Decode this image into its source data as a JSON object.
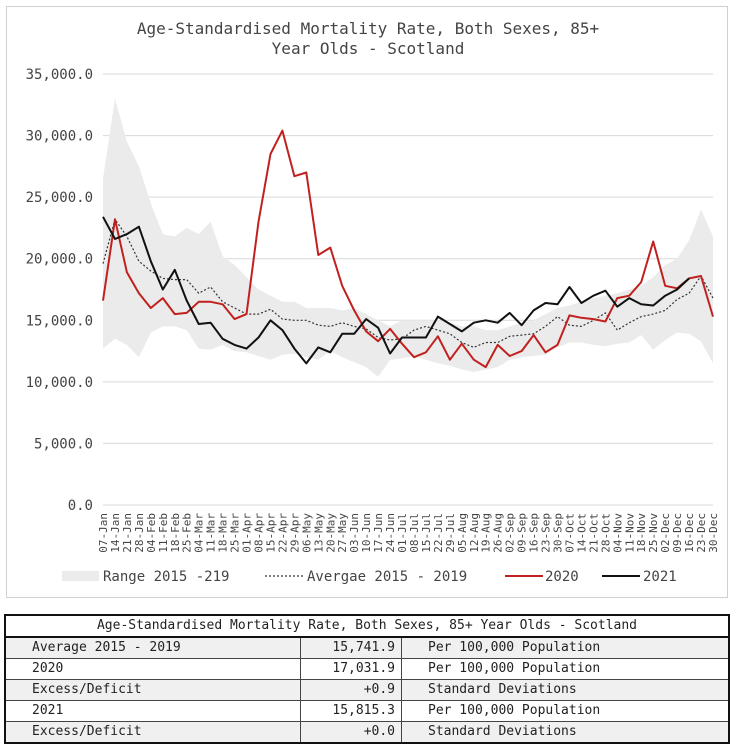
{
  "chart_data": {
    "type": "line",
    "title": "Age-Standardised Mortality Rate, Both Sexes, 85+ Year Olds - Scotland",
    "ylim": [
      0,
      35000
    ],
    "yticks": [
      "0.0",
      "5,000.0",
      "10,000.0",
      "15,000.0",
      "20,000.0",
      "25,000.0",
      "30,000.0",
      "35,000.0"
    ],
    "grid": "horizontal",
    "legend": "bottom",
    "categories": [
      "07-Jan",
      "14-Jan",
      "21-Jan",
      "28-Jan",
      "04-Feb",
      "11-Feb",
      "18-Feb",
      "25-Feb",
      "04-Mar",
      "11-Mar",
      "18-Mar",
      "25-Mar",
      "01-Apr",
      "08-Apr",
      "15-Apr",
      "22-Apr",
      "29-Apr",
      "06-May",
      "13-May",
      "20-May",
      "27-May",
      "03-Jun",
      "10-Jun",
      "17-Jun",
      "24-Jun",
      "01-Jul",
      "08-Jul",
      "15-Jul",
      "22-Jul",
      "29-Jul",
      "05-Aug",
      "12-Aug",
      "19-Aug",
      "26-Aug",
      "02-Sep",
      "09-Sep",
      "16-Sep",
      "23-Sep",
      "30-Sep",
      "07-Oct",
      "14-Oct",
      "21-Oct",
      "28-Oct",
      "04-Nov",
      "11-Nov",
      "18-Nov",
      "25-Nov",
      "02-Dec",
      "09-Dec",
      "16-Dec",
      "23-Dec",
      "30-Dec"
    ],
    "x_tick_labels": [
      "07-Jan",
      "14-Jan",
      "21-Jan",
      "28-Jan",
      "04-Feb",
      "11-Feb",
      "18-Feb",
      "25-Feb",
      "04-Mar",
      "11-Mar",
      "18-Mar",
      "25-Mar",
      "01-Apr",
      "08-Apr",
      "15-Apr",
      "22-Apr",
      "29-Apr",
      "06-May",
      "13-May",
      "20-May",
      "27-May",
      "03-Jun",
      "10-Jun",
      "17-Jun",
      "24-Jun",
      "01-Jul",
      "08-Jul",
      "15-Jul",
      "22-Jul",
      "29-Jul",
      "05-Aug",
      "12-Aug",
      "19-Aug",
      "26-Aug",
      "02-Sep",
      "09-Sep",
      "16-Sep",
      "23-Sep",
      "30-Sep",
      "07-Oct",
      "14-Oct",
      "21-Oct",
      "28-Oct",
      "04-Nov",
      "11-Nov",
      "18-Nov",
      "25-Nov",
      "02-Dec",
      "09-Dec",
      "16-Dec",
      "23-Dec",
      "30-Dec"
    ],
    "range": {
      "name": "Range 2015 -219",
      "color": "#ebebeb",
      "upper": [
        26500,
        33000,
        29500,
        27500,
        24500,
        22000,
        21800,
        22500,
        22000,
        23000,
        20200,
        19500,
        18500,
        17500,
        17000,
        16500,
        16500,
        16000,
        16000,
        16000,
        15800,
        16000,
        15500,
        15000,
        14500,
        15000,
        15000,
        15000,
        15000,
        14800,
        14500,
        14500,
        14200,
        14200,
        14500,
        14800,
        15000,
        15500,
        16000,
        16200,
        16500,
        16800,
        17000,
        17200,
        17500,
        17800,
        18500,
        19500,
        20000,
        21500,
        24000,
        21800
      ],
      "lower": [
        12700,
        13500,
        13000,
        12000,
        14000,
        14500,
        14500,
        14200,
        12700,
        12600,
        13000,
        12500,
        12400,
        12100,
        11800,
        12200,
        12300,
        12000,
        11800,
        12500,
        12000,
        11600,
        11200,
        10400,
        11800,
        11900,
        12100,
        11800,
        11500,
        11300,
        11000,
        10800,
        11000,
        11200,
        11800,
        12000,
        12100,
        12200,
        12800,
        13200,
        13200,
        13000,
        12900,
        13100,
        13200,
        13800,
        12600,
        13400,
        14000,
        13900,
        13300,
        11500
      ]
    },
    "series": [
      {
        "name": "Avergae 2015 - 2019",
        "color": "#333333",
        "style": "dotted",
        "values": [
          19600,
          23200,
          21800,
          19800,
          19000,
          18400,
          18300,
          18300,
          17200,
          17700,
          16500,
          16000,
          15500,
          15500,
          15900,
          15100,
          15000,
          15000,
          14600,
          14500,
          14800,
          14500,
          14300,
          13600,
          13400,
          13500,
          14200,
          14500,
          14200,
          13900,
          13200,
          12800,
          13200,
          13200,
          13700,
          13800,
          13900,
          14500,
          15300,
          14600,
          14500,
          15000,
          15600,
          14200,
          14800,
          15300,
          15500,
          15800,
          16700,
          17200,
          18600,
          16800
        ]
      },
      {
        "name": "2020",
        "color": "#c0211e",
        "style": "solid",
        "values": [
          16600,
          23200,
          18900,
          17200,
          16000,
          16800,
          15500,
          15600,
          16500,
          16500,
          16300,
          15100,
          15500,
          23000,
          28500,
          30400,
          26700,
          27000,
          20300,
          20900,
          17800,
          15800,
          14100,
          13300,
          14300,
          13100,
          12000,
          12400,
          13700,
          11800,
          13100,
          11800,
          11200,
          13000,
          12100,
          12500,
          13800,
          12400,
          13000,
          15400,
          15200,
          15100,
          14900,
          16800,
          17000,
          18100,
          21400,
          17800,
          17600,
          18400,
          18600,
          15300
        ]
      },
      {
        "name": "2021",
        "color": "#111111",
        "style": "solid",
        "values": [
          23400,
          21600,
          22000,
          22600,
          19800,
          17500,
          19100,
          16600,
          14700,
          14800,
          13500,
          13000,
          12700,
          13600,
          15000,
          14200,
          12700,
          11500,
          12800,
          12400,
          13900,
          13900,
          15100,
          14400,
          12300,
          13600,
          13600,
          13600,
          15300,
          14700,
          14100,
          14800,
          15000,
          14800,
          15600,
          14600,
          15800,
          16400,
          16300,
          17700,
          16400,
          17000,
          17400,
          16100,
          16800,
          16300,
          16200,
          17000,
          17500,
          18400,
          null,
          null
        ]
      }
    ]
  },
  "summary_table": {
    "title": "Age-Standardised Mortality Rate, Both Sexes, 85+ Year Olds - Scotland",
    "rows": [
      {
        "label": "Average 2015 - 2019",
        "value": "15,741.9",
        "unit": "Per 100,000 Population"
      },
      {
        "label": "2020",
        "value": "17,031.9",
        "unit": "Per 100,000 Population"
      },
      {
        "label": "Excess/Deficit",
        "value": "+0.9",
        "unit": "Standard Deviations"
      },
      {
        "label": "2021",
        "value": "15,815.3",
        "unit": "Per 100,000 Population"
      },
      {
        "label": "Excess/Deficit",
        "value": "+0.0",
        "unit": "Standard Deviations"
      }
    ]
  }
}
